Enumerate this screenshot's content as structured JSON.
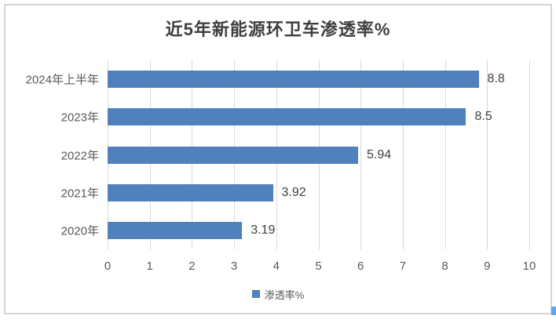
{
  "chart": {
    "bar_color": "#5081bd",
    "grid_color": "#d9d9d9",
    "frame_color": "#d5d5d5",
    "title_color": "#3f3f3f",
    "axis_text_color": "#595959",
    "artifact_color": "#58a6f4"
  },
  "chart_data": {
    "type": "bar",
    "orientation": "horizontal",
    "title": "近5年新能源环卫车渗透率%",
    "categories": [
      "2024年上半年",
      "2023年",
      "2022年",
      "2021年",
      "2020年"
    ],
    "values": [
      8.8,
      8.5,
      5.94,
      3.92,
      3.19
    ],
    "data_labels": [
      "8.8",
      "8.5",
      "5.94",
      "3.92",
      "3.19"
    ],
    "xlabel": "",
    "ylabel": "",
    "xlim": [
      0,
      10
    ],
    "x_ticks": [
      0,
      1,
      2,
      3,
      4,
      5,
      6,
      7,
      8,
      9,
      10
    ],
    "legend": [
      "渗透率%"
    ],
    "legend_position": "bottom",
    "grid": true
  }
}
